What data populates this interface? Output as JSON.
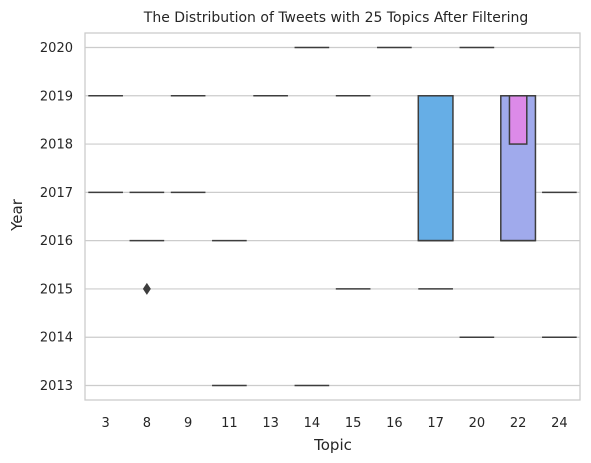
{
  "chart_data": {
    "type": "box",
    "title": "The Distribution of Tweets with 25 Topics After Filtering",
    "xlabel": "Topic",
    "ylabel": "Year",
    "categories": [
      "3",
      "8",
      "9",
      "11",
      "13",
      "14",
      "15",
      "16",
      "17",
      "20",
      "22",
      "24"
    ],
    "ylim": [
      2012.7,
      2020.3
    ],
    "yticks": [
      2013,
      2014,
      2015,
      2016,
      2017,
      2018,
      2019,
      2020
    ],
    "grid": "horizontal",
    "boxes": [
      {
        "topic": "3",
        "whiskers": [
          2017,
          2019
        ],
        "q1": null,
        "q3": null,
        "lines": [
          2017,
          2019
        ],
        "outliers": []
      },
      {
        "topic": "8",
        "whiskers": [
          2016,
          2017
        ],
        "q1": null,
        "q3": null,
        "lines": [
          2016,
          2017
        ],
        "outliers": [
          2015
        ]
      },
      {
        "topic": "9",
        "whiskers": [
          2017,
          2019
        ],
        "q1": null,
        "q3": null,
        "lines": [
          2017,
          2019
        ],
        "outliers": []
      },
      {
        "topic": "11",
        "whiskers": [
          2013,
          2016
        ],
        "q1": null,
        "q3": null,
        "lines": [
          2013,
          2016
        ],
        "outliers": []
      },
      {
        "topic": "13",
        "whiskers": [
          2019,
          2019
        ],
        "q1": null,
        "q3": null,
        "lines": [
          2019
        ],
        "outliers": []
      },
      {
        "topic": "14",
        "whiskers": [
          2013,
          2020
        ],
        "q1": null,
        "q3": null,
        "lines": [
          2013,
          2020
        ],
        "outliers": []
      },
      {
        "topic": "15",
        "whiskers": [
          2015,
          2019
        ],
        "q1": null,
        "q3": null,
        "lines": [
          2015,
          2019
        ],
        "outliers": []
      },
      {
        "topic": "16",
        "whiskers": [
          2020,
          2020
        ],
        "q1": null,
        "q3": null,
        "lines": [
          2020
        ],
        "outliers": []
      },
      {
        "topic": "17",
        "whiskers": [
          2015,
          2019
        ],
        "q1": 2016,
        "q3": 2019,
        "median": 2016,
        "lines": [
          2015
        ],
        "color": "#66aee6",
        "outliers": []
      },
      {
        "topic": "20",
        "whiskers": [
          2014,
          2020
        ],
        "q1": null,
        "q3": null,
        "lines": [
          2014,
          2020
        ],
        "outliers": []
      },
      {
        "topic": "22",
        "whiskers": [
          2016,
          2019
        ],
        "q1": 2016,
        "q3": 2019,
        "median": 2016,
        "lines": [],
        "color": "#a0aaec",
        "outliers": [],
        "inner": {
          "q1": 2018,
          "q3": 2019,
          "color": "#dc8ae8"
        }
      },
      {
        "topic": "24",
        "whiskers": [
          2014,
          2017
        ],
        "q1": null,
        "q3": null,
        "lines": [
          2014,
          2017
        ],
        "outliers": []
      }
    ],
    "colors": {
      "line": "#3d3d3d",
      "grid": "#cccccc",
      "spine": "#cccccc"
    }
  }
}
